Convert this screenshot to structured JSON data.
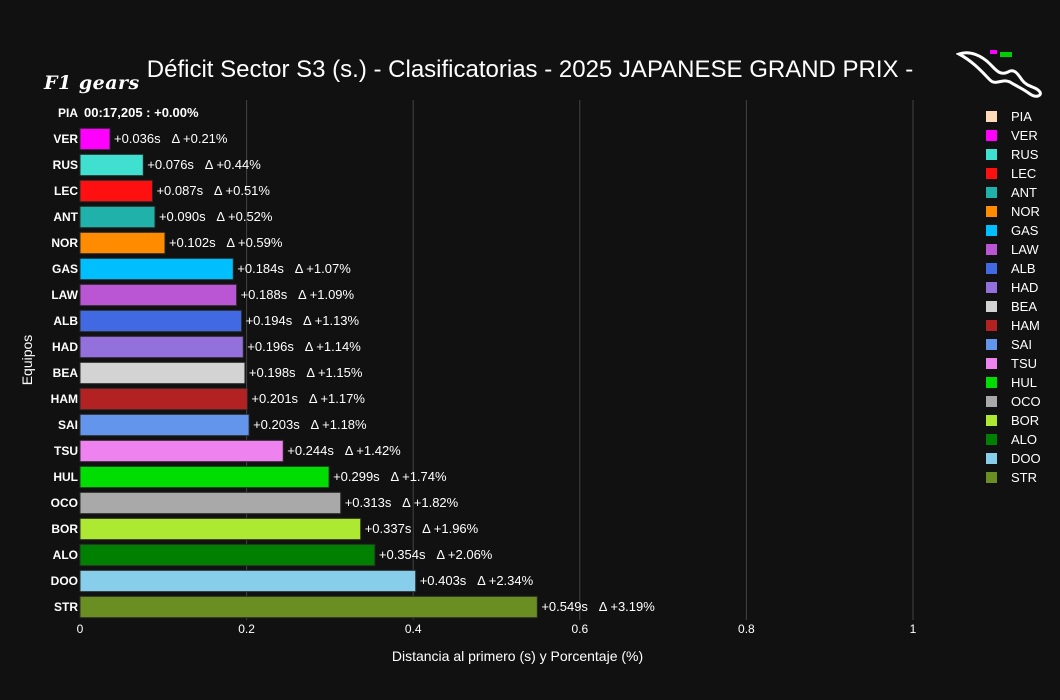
{
  "chart_data": {
    "type": "bar",
    "orientation": "horizontal",
    "title": "Déficit Sector S3 (s.) - Clasificatorias - 2025 JAPANESE GRAND PRIX -",
    "xlabel": "Distancia al primero (s) y Porcentaje (%)",
    "ylabel": "Equipos",
    "xlim": [
      0,
      1
    ],
    "x_ticks": [
      "0",
      "0.2",
      "0.4",
      "0.6",
      "0.8",
      "1"
    ],
    "grid": true,
    "legend_position": "right",
    "categories": [
      "PIA",
      "VER",
      "RUS",
      "LEC",
      "ANT",
      "NOR",
      "GAS",
      "LAW",
      "ALB",
      "HAD",
      "BEA",
      "HAM",
      "SAI",
      "TSU",
      "HUL",
      "OCO",
      "BOR",
      "ALO",
      "DOO",
      "STR"
    ],
    "values": [
      0,
      0.036,
      0.076,
      0.087,
      0.09,
      0.102,
      0.184,
      0.188,
      0.194,
      0.196,
      0.198,
      0.201,
      0.203,
      0.244,
      0.299,
      0.313,
      0.337,
      0.354,
      0.403,
      0.549
    ],
    "labels": [
      "00:17,205 : +0.00%",
      "+0.036s   Δ +0.21%",
      "+0.076s   Δ +0.44%",
      "+0.087s   Δ +0.51%",
      "+0.090s   Δ +0.52%",
      "+0.102s   Δ +0.59%",
      "+0.184s   Δ +1.07%",
      "+0.188s   Δ +1.09%",
      "+0.194s   Δ +1.13%",
      "+0.196s   Δ +1.14%",
      "+0.198s   Δ +1.15%",
      "+0.201s   Δ +1.17%",
      "+0.203s   Δ +1.18%",
      "+0.244s   Δ +1.42%",
      "+0.299s   Δ +1.74%",
      "+0.313s   Δ +1.82%",
      "+0.337s   Δ +1.96%",
      "+0.354s   Δ +2.06%",
      "+0.403s   Δ +2.34%",
      "+0.549s   Δ +3.19%"
    ],
    "colors": [
      "#FFDAB9",
      "#FF00FF",
      "#40E0D0",
      "#FF1010",
      "#20B2AA",
      "#FF8C00",
      "#00BFFF",
      "#BA55D3",
      "#4169E1",
      "#9370DB",
      "#D3D3D3",
      "#B22222",
      "#6495ED",
      "#EE82EE",
      "#00DD00",
      "#A9A9A9",
      "#ADE833",
      "#008000",
      "#87CEEB",
      "#6B8E23"
    ]
  },
  "logo_text": "F1 gears",
  "colors": {
    "background": "#111111",
    "grid": "#444444",
    "text": "#ffffff"
  }
}
